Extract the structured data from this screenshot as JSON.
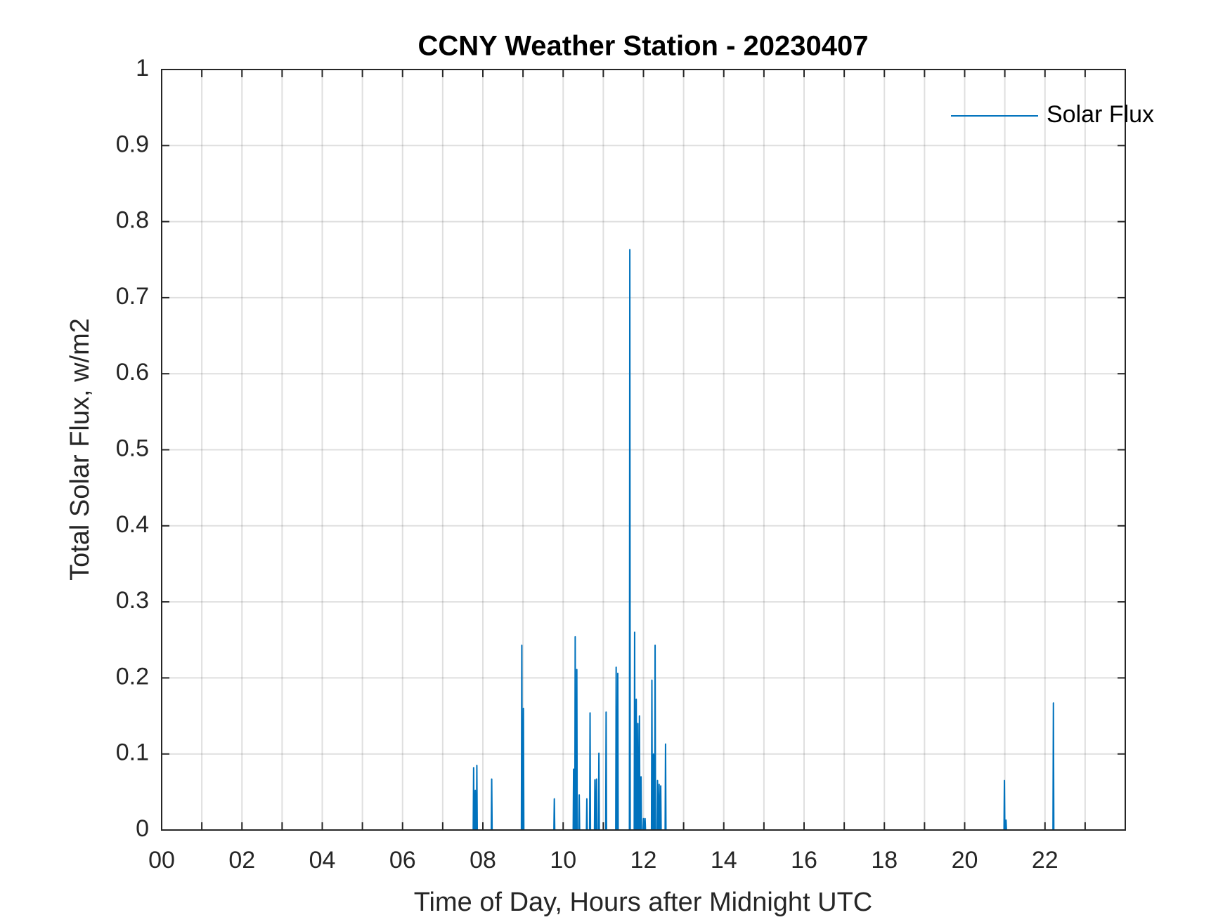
{
  "chart_data": {
    "type": "line",
    "title": "CCNY Weather Station - 20230407",
    "x_label": "Time of Day, Hours after Midnight UTC",
    "y_label": "Total Solar Flux, w/m2",
    "xlim": [
      0,
      24
    ],
    "ylim": [
      0,
      1
    ],
    "xticks": [
      {
        "value": 0,
        "label": "00"
      },
      {
        "value": 2,
        "label": "02"
      },
      {
        "value": 4,
        "label": "04"
      },
      {
        "value": 6,
        "label": "06"
      },
      {
        "value": 8,
        "label": "08"
      },
      {
        "value": 10,
        "label": "10"
      },
      {
        "value": 12,
        "label": "12"
      },
      {
        "value": 14,
        "label": "14"
      },
      {
        "value": 16,
        "label": "16"
      },
      {
        "value": 18,
        "label": "18"
      },
      {
        "value": 20,
        "label": "20"
      },
      {
        "value": 22,
        "label": "22"
      }
    ],
    "xminorticks": [
      1,
      3,
      5,
      7,
      9,
      11,
      13,
      15,
      17,
      19,
      21,
      23
    ],
    "yticks": [
      0,
      0.1,
      0.2,
      0.3,
      0.4,
      0.5,
      0.6,
      0.7,
      0.8,
      0.9,
      1
    ],
    "grid": true,
    "legend": "upper right",
    "x": [
      0,
      7.76,
      7.77,
      7.78,
      7.8,
      7.81,
      7.82,
      7.84,
      7.85,
      7.86,
      8.21,
      8.22,
      8.23,
      8.96,
      8.97,
      8.98,
      9.0,
      9.01,
      9.02,
      9.77,
      9.78,
      9.79,
      10.25,
      10.26,
      10.27,
      10.29,
      10.3,
      10.31,
      10.33,
      10.34,
      10.35,
      10.39,
      10.4,
      10.41,
      10.58,
      10.59,
      10.6,
      10.66,
      10.67,
      10.68,
      10.78,
      10.79,
      10.8,
      10.82,
      10.83,
      10.84,
      10.88,
      10.89,
      10.9,
      11.06,
      11.07,
      11.08,
      11.31,
      11.32,
      11.33,
      11.35,
      11.36,
      11.37,
      11.65,
      11.66,
      11.67,
      11.77,
      11.78,
      11.79,
      11.81,
      11.82,
      11.83,
      11.85,
      11.86,
      11.87,
      11.89,
      11.9,
      11.91,
      11.93,
      11.94,
      11.95,
      11.99,
      12.0,
      12.01,
      12.03,
      12.04,
      12.05,
      12.2,
      12.21,
      12.22,
      12.24,
      12.25,
      12.26,
      12.28,
      12.29,
      12.3,
      12.34,
      12.35,
      12.36,
      12.38,
      12.39,
      12.4,
      12.42,
      12.43,
      12.44,
      12.54,
      12.55,
      12.56,
      20.98,
      20.99,
      21.0,
      21.02,
      21.03,
      21.04,
      22.2,
      22.21,
      22.22,
      23.99
    ],
    "series": [
      {
        "name": "Solar Flux",
        "color": "#0072bd",
        "values": [
          0,
          0,
          0.082,
          0,
          0,
          0.052,
          0,
          0,
          0.085,
          0,
          0,
          0.067,
          0,
          0,
          0.243,
          0,
          0,
          0.16,
          0,
          0,
          0.041,
          0,
          0,
          0.08,
          0,
          0,
          0.254,
          0,
          0,
          0.211,
          0,
          0,
          0.046,
          0,
          0,
          0.041,
          0,
          0,
          0.154,
          0,
          0,
          0.066,
          0,
          0,
          0.067,
          0,
          0,
          0.101,
          0,
          0,
          0.155,
          0,
          0,
          0.214,
          0,
          0,
          0.206,
          0,
          0,
          0.763,
          0,
          0,
          0.26,
          0,
          0,
          0.172,
          0,
          0,
          0.14,
          0,
          0,
          0.15,
          0,
          0,
          0.07,
          0,
          0,
          0.015,
          0,
          0,
          0.015,
          0,
          0,
          0.197,
          0,
          0,
          0.1,
          0,
          0,
          0.243,
          0,
          0,
          0.065,
          0,
          0,
          0.06,
          0,
          0,
          0.058,
          0,
          0,
          0.113,
          0,
          0,
          0.065,
          0,
          0,
          0.013,
          0,
          0,
          0.167,
          0,
          0
        ]
      }
    ]
  }
}
